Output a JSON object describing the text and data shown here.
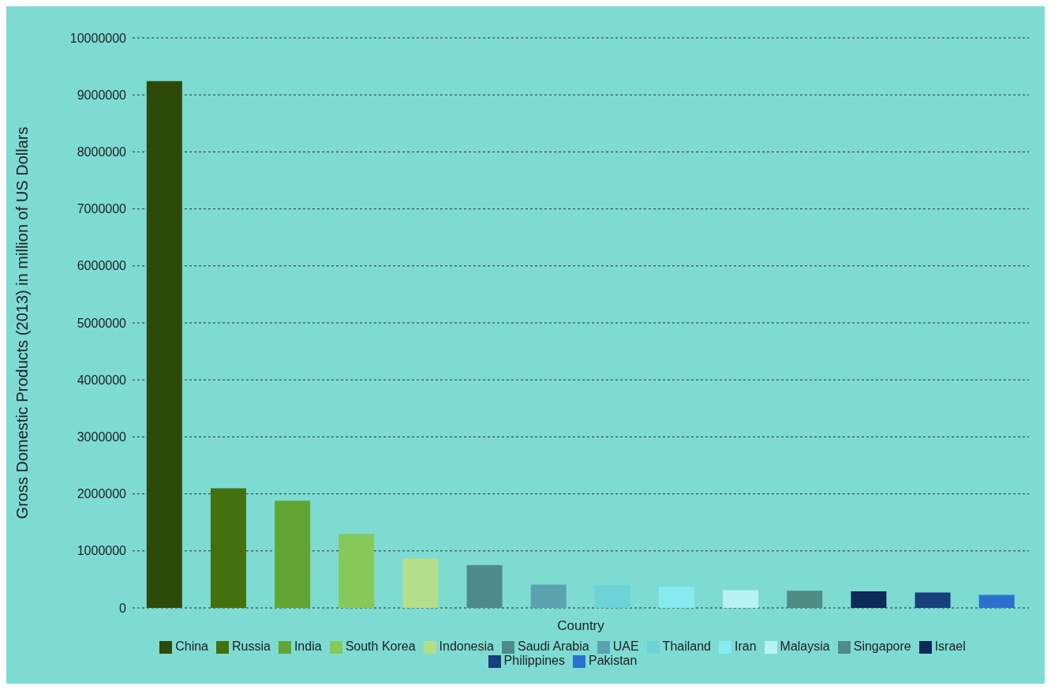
{
  "chart_data": {
    "type": "bar",
    "xlabel": "Country",
    "ylabel": "Gross Domestic Products (2013) in million of US Dollars",
    "categories": [
      null,
      null,
      null,
      null,
      null,
      null,
      null,
      null,
      null,
      null,
      null,
      null,
      null,
      null
    ],
    "series": [
      {
        "name": "China",
        "color": "#2d4a0a",
        "values": [
          9240000,
          null,
          null,
          null,
          null,
          null,
          null,
          null,
          null,
          null,
          null,
          null,
          null,
          null
        ]
      },
      {
        "name": "Russia",
        "color": "#44700f",
        "values": [
          null,
          2100000,
          null,
          null,
          null,
          null,
          null,
          null,
          null,
          null,
          null,
          null,
          null,
          null
        ]
      },
      {
        "name": "India",
        "color": "#62a532",
        "values": [
          null,
          null,
          1880000,
          null,
          null,
          null,
          null,
          null,
          null,
          null,
          null,
          null,
          null,
          null
        ]
      },
      {
        "name": "South Korea",
        "color": "#86c95a",
        "values": [
          null,
          null,
          null,
          1300000,
          null,
          null,
          null,
          null,
          null,
          null,
          null,
          null,
          null,
          null
        ]
      },
      {
        "name": "Indonesia",
        "color": "#b4de8a",
        "values": [
          null,
          null,
          null,
          null,
          870000,
          null,
          null,
          null,
          null,
          null,
          null,
          null,
          null,
          null
        ]
      },
      {
        "name": "Saudi Arabia",
        "color": "#4f8a8a",
        "values": [
          null,
          null,
          null,
          null,
          null,
          750000,
          null,
          null,
          null,
          null,
          null,
          null,
          null,
          null
        ]
      },
      {
        "name": "UAE",
        "color": "#5aa3ae",
        "values": [
          null,
          null,
          null,
          null,
          null,
          null,
          410000,
          null,
          null,
          null,
          null,
          null,
          null,
          null
        ]
      },
      {
        "name": "Thailand",
        "color": "#6dd3d9",
        "values": [
          null,
          null,
          null,
          null,
          null,
          null,
          null,
          400000,
          null,
          null,
          null,
          null,
          null,
          null
        ]
      },
      {
        "name": "Iran",
        "color": "#86eaf0",
        "values": [
          null,
          null,
          null,
          null,
          null,
          null,
          null,
          null,
          370000,
          null,
          null,
          null,
          null,
          null
        ]
      },
      {
        "name": "Malaysia",
        "color": "#b8f2f2",
        "values": [
          null,
          null,
          null,
          null,
          null,
          null,
          null,
          null,
          null,
          310000,
          null,
          null,
          null,
          null
        ]
      },
      {
        "name": "Singapore",
        "color": "#4e8c84",
        "values": [
          null,
          null,
          null,
          null,
          null,
          null,
          null,
          null,
          null,
          null,
          300000,
          null,
          null,
          null
        ]
      },
      {
        "name": "Israel",
        "color": "#0e2a5a",
        "values": [
          null,
          null,
          null,
          null,
          null,
          null,
          null,
          null,
          null,
          null,
          null,
          290000,
          null,
          null
        ]
      },
      {
        "name": "Philippines",
        "color": "#163f7c",
        "values": [
          null,
          null,
          null,
          null,
          null,
          null,
          null,
          null,
          null,
          null,
          null,
          null,
          270000,
          null
        ]
      },
      {
        "name": "Pakistan",
        "color": "#2b71cc",
        "values": [
          null,
          null,
          null,
          null,
          null,
          null,
          null,
          null,
          null,
          null,
          null,
          null,
          null,
          230000
        ]
      }
    ],
    "ylim": [
      0,
      10000000
    ],
    "yticks": [
      0,
      1000000,
      2000000,
      3000000,
      4000000,
      5000000,
      6000000,
      7000000,
      8000000,
      9000000,
      10000000
    ],
    "grid": "y",
    "legend": "bottom",
    "tick_labels": "y"
  }
}
